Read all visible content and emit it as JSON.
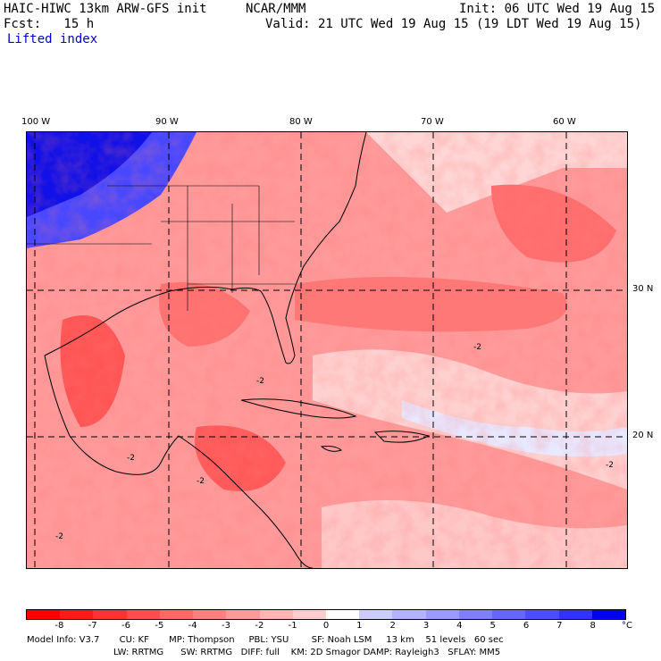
{
  "header": {
    "model_title": "HAIC-HIWC 13km ARW-GFS init",
    "org": "NCAR/MMM",
    "init": "Init: 06 UTC Wed 19 Aug 15",
    "fcst": "Fcst:   15 h",
    "valid": "Valid: 21 UTC Wed 19 Aug 15 (19 LDT Wed 19 Aug 15)",
    "field": "Lifted index"
  },
  "map": {
    "lon_labels": [
      "100 W",
      "90 W",
      "80 W",
      "70 W",
      "60 W"
    ],
    "lat_labels": [
      "30 N",
      "20 N"
    ],
    "contour_labels": [
      "-2",
      "-2",
      "-2",
      "-2",
      "-2",
      "-2"
    ]
  },
  "colorbar": {
    "labels": [
      "-8",
      "-7",
      "-6",
      "-5",
      "-4",
      "-3",
      "-2",
      "-1",
      "0",
      "1",
      "2",
      "3",
      "4",
      "5",
      "6",
      "7",
      "8"
    ],
    "unit": "°C",
    "colors": [
      "#ff0000",
      "#ff1a1a",
      "#ff3333",
      "#ff4d4d",
      "#ff6666",
      "#ff8080",
      "#ff9999",
      "#ffb3b3",
      "#ffcccc",
      "#ffffff",
      "#ccccff",
      "#b3b3ff",
      "#9999ff",
      "#8080ff",
      "#6666ff",
      "#4d4dff",
      "#3333ff",
      "#0000ee"
    ]
  },
  "model_info": {
    "line1": "Model Info: V3.7       CU: KF       MP: Thompson     PBL: YSU        SF: Noah LSM     13 km    51 levels   60 sec",
    "line2": "LW: RRTMG      SW: RRTMG   DIFF: full    KM: 2D Smagor DAMP: Rayleigh3   SFLAY: MM5"
  }
}
